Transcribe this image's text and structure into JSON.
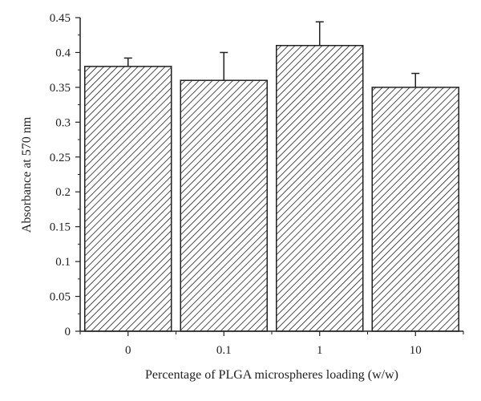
{
  "chart_data": {
    "type": "bar",
    "title": "",
    "xlabel": "Percentage of PLGA microspheres loading (w/w)",
    "ylabel": "Absorbance at 570 nm",
    "categories": [
      "0",
      "0.1",
      "1",
      "10"
    ],
    "series": [
      {
        "values": [
          0.38,
          0.36,
          0.41,
          0.35
        ],
        "error_upper": [
          0.012,
          0.04,
          0.034,
          0.02
        ]
      }
    ],
    "ylim": [
      0,
      0.45
    ],
    "yticks": [
      "0",
      "0.05",
      "0.1",
      "0.15",
      "0.2",
      "0.25",
      "0.3",
      "0.35",
      "0.4",
      "0.45"
    ],
    "ytick_values": [
      0,
      0.05,
      0.1,
      0.15,
      0.2,
      0.25,
      0.3,
      0.35,
      0.4,
      0.45
    ],
    "bar_fill": "hatched",
    "colors": {
      "stroke": "#222222",
      "background": "#ffffff"
    },
    "grid": false,
    "legend": "none"
  }
}
